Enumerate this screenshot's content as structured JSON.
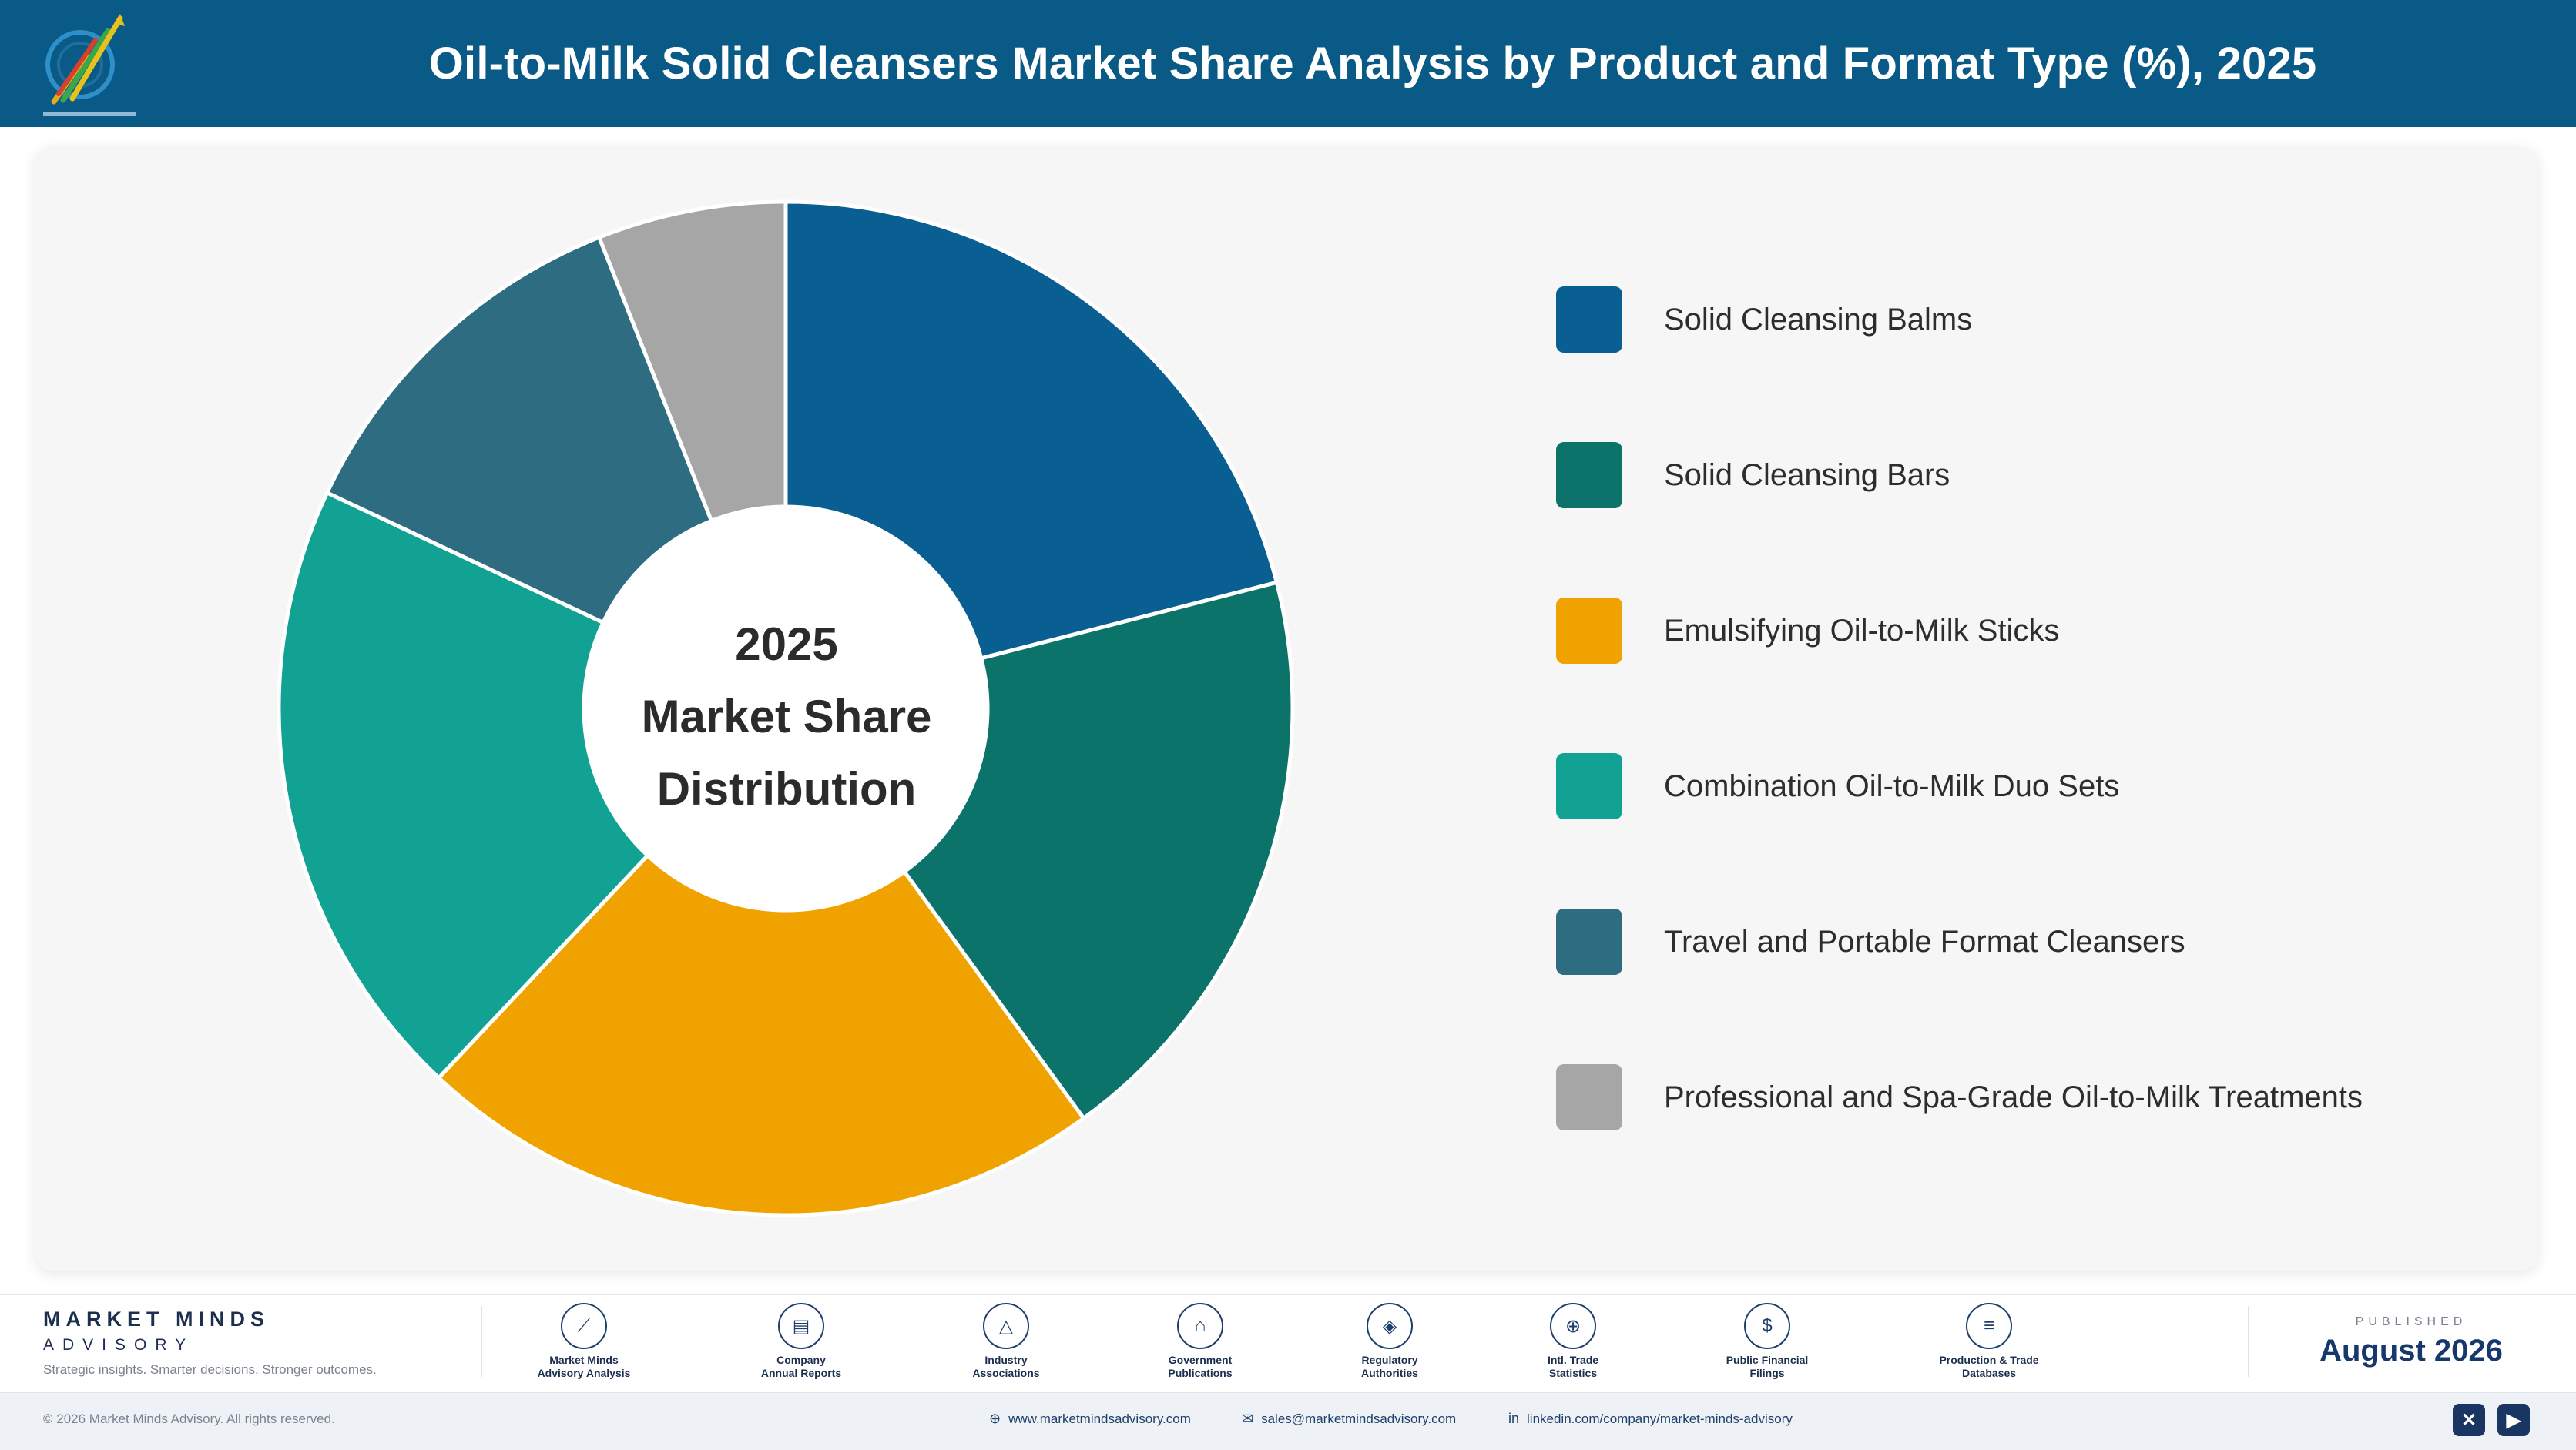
{
  "header": {
    "title": "Oil-to-Milk Solid Cleansers Market Share Analysis by Product and Format Type (%), 2025"
  },
  "chart_data": {
    "type": "pie",
    "title": "Oil-to-Milk Solid Cleansers Market Share Analysis by Product and Format Type (%), 2025",
    "center_label": [
      "2025",
      "Market Share",
      "Distribution"
    ],
    "categories": [
      "Solid Cleansing Balms",
      "Solid Cleansing Bars",
      "Emulsifying Oil-to-Milk Sticks",
      "Combination Oil-to-Milk Duo Sets",
      "Travel and Portable Format Cleansers",
      "Professional and Spa-Grade Oil-to-Milk Treatments"
    ],
    "values": [
      21,
      19,
      22,
      20,
      12,
      6
    ],
    "colors": [
      "#0a5f92",
      "#0c736a",
      "#f0a200",
      "#12a293",
      "#2e6d81",
      "#a6a6a6"
    ],
    "legend_position": "right",
    "donut": true
  },
  "footer": {
    "brand_name": "MARKET MINDS",
    "brand_sub": "ADVISORY",
    "tagline": "Strategic insights. Smarter decisions. Stronger outcomes.",
    "sources": [
      {
        "icon": "trend-chart-icon",
        "glyph": "⟋",
        "label1": "Market Minds",
        "label2": "Advisory Analysis"
      },
      {
        "icon": "document-icon",
        "glyph": "▤",
        "label1": "Company",
        "label2": "Annual Reports"
      },
      {
        "icon": "network-icon",
        "glyph": "△",
        "label1": "Industry",
        "label2": "Associations"
      },
      {
        "icon": "government-building-icon",
        "glyph": "⌂",
        "label1": "Government",
        "label2": "Publications"
      },
      {
        "icon": "shield-icon",
        "glyph": "◈",
        "label1": "Regulatory",
        "label2": "Authorities"
      },
      {
        "icon": "globe-icon",
        "glyph": "⊕",
        "label1": "Intl. Trade",
        "label2": "Statistics"
      },
      {
        "icon": "dollar-coin-icon",
        "glyph": "$",
        "label1": "Public Financial",
        "label2": "Filings"
      },
      {
        "icon": "database-icon",
        "glyph": "≡",
        "label1": "Production & Trade",
        "label2": "Databases"
      }
    ],
    "published_label": "PUBLISHED",
    "published_date": "August 2026",
    "copyright": "© 2026 Market Minds Advisory. All rights reserved.",
    "website": "www.marketmindsadvisory.com",
    "email": "sales@marketmindsadvisory.com",
    "linkedin": "linkedin.com/company/market-minds-advisory",
    "social": [
      {
        "icon": "x-twitter-icon",
        "glyph": "✕"
      },
      {
        "icon": "youtube-icon",
        "glyph": "▶"
      }
    ]
  }
}
